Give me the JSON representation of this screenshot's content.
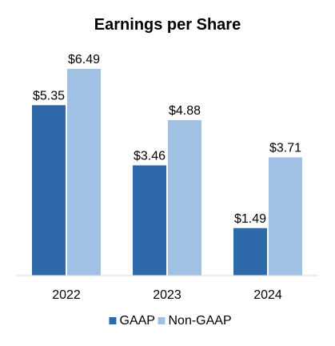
{
  "chart_data": {
    "type": "bar",
    "title": "Earnings per Share",
    "categories": [
      "2022",
      "2023",
      "2024"
    ],
    "series": [
      {
        "name": "GAAP",
        "values": [
          5.35,
          3.46,
          1.49
        ],
        "labels": [
          "$5.35",
          "$3.46",
          "$1.49"
        ],
        "color": "#2e6aa9"
      },
      {
        "name": "Non-GAAP",
        "values": [
          6.49,
          4.88,
          3.71
        ],
        "labels": [
          "$6.49",
          "$4.88",
          "$3.71"
        ],
        "color": "#a1c1e4"
      }
    ],
    "xlabel": "",
    "ylabel": "",
    "ylim": [
      0,
      6.49
    ],
    "grid": false,
    "legend_position": "bottom",
    "axis_color": "#d9d9d9"
  }
}
